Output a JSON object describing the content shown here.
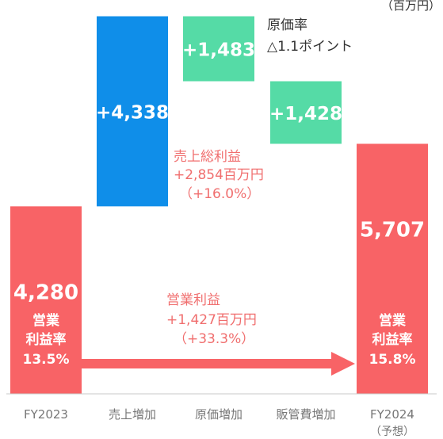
{
  "unit_label": "（百万円）",
  "colors": {
    "operating_profit": "#f86366",
    "sales_increase": "#0f8ee9",
    "cost_bar": "#55dba6",
    "annotation_red": "#f06e6e",
    "text_dark": "#333333",
    "axis_text": "#777777",
    "baseline": "#c8c8c8",
    "white": "#ffffff"
  },
  "chart_data": {
    "type": "waterfall",
    "categories": [
      "FY2023",
      "売上増加",
      "原価増加",
      "販管費増加",
      "FY2024"
    ],
    "category_sublabels": [
      "",
      "",
      "",
      "",
      "（予想）"
    ],
    "steps": [
      {
        "kind": "total",
        "value": 4280,
        "label": "4,280",
        "margin_label": "営業",
        "margin_label2": "利益率",
        "margin_value": "13.5%"
      },
      {
        "kind": "increase",
        "value": 4338,
        "label": "+4,338"
      },
      {
        "kind": "decrease",
        "value": 1483,
        "label": "+1,483"
      },
      {
        "kind": "decrease",
        "value": 1428,
        "label": "+1,428"
      },
      {
        "kind": "total",
        "value": 5707,
        "label": "5,707",
        "margin_label": "営業",
        "margin_label2": "利益率",
        "margin_value": "15.8%"
      }
    ],
    "ylim": [
      0,
      8700
    ]
  },
  "annotations": {
    "cost_ratio_line1": "原価率",
    "cost_ratio_line2": "△1.1ポイント",
    "gross_profit_line1": "売上総利益",
    "gross_profit_line2": "+2,854百万円",
    "gross_profit_line3": "（+16.0%）",
    "op_profit_line1": "営業利益",
    "op_profit_line2": "+1,427百万円",
    "op_profit_line3": "（+33.3%）"
  }
}
